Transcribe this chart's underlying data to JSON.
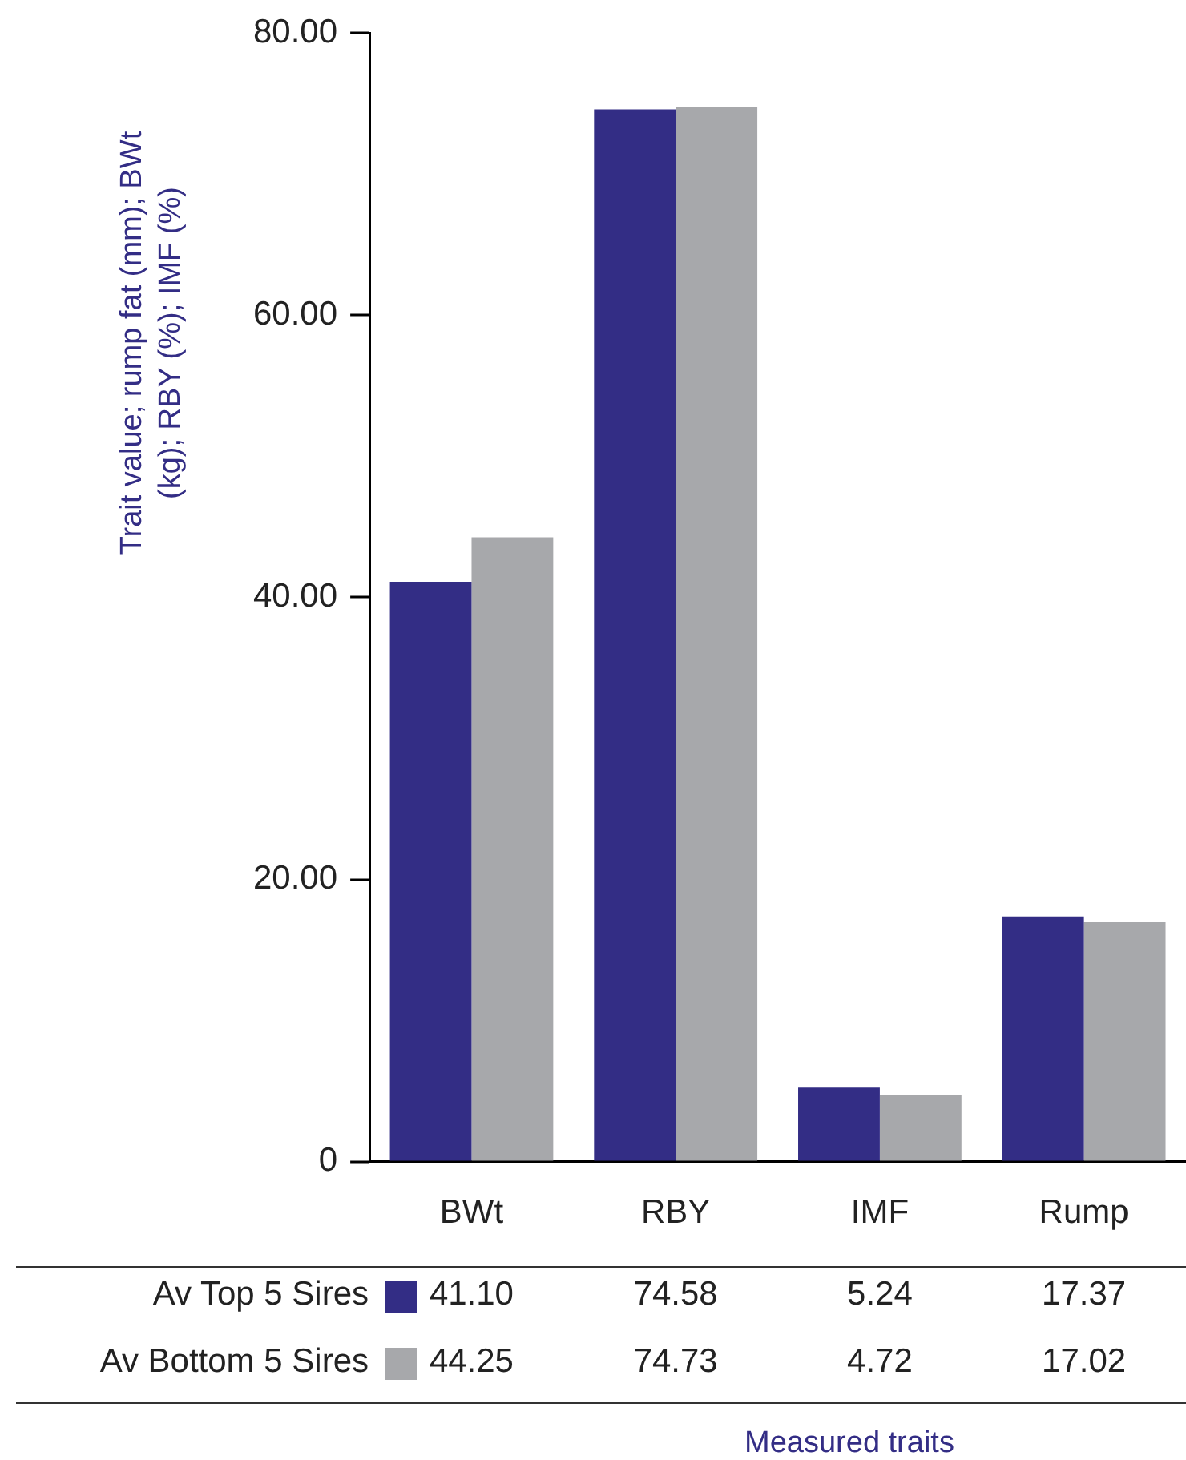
{
  "chart_data": {
    "type": "bar",
    "ylabel": "Trait value; rump fat (mm); BWt (kg); RBY (%); IMF (%)",
    "annotations": [
      "Measured traits"
    ],
    "categories": [
      "BWt",
      "RBY",
      "IMF",
      "Rump"
    ],
    "series": [
      {
        "name": "Av Top 5 Sires",
        "color": "#332d85",
        "values": [
          41.1,
          74.58,
          5.24,
          17.37
        ],
        "value_labels": [
          "41.10",
          "74.58",
          "5.24",
          "17.37"
        ]
      },
      {
        "name": "Av Bottom 5 Sires",
        "color": "#a7a8ab",
        "values": [
          44.25,
          74.73,
          4.72,
          17.02
        ],
        "value_labels": [
          "44.25",
          "74.73",
          "4.72",
          "17.02"
        ]
      }
    ],
    "ylim": [
      0,
      80
    ],
    "yticks": [
      0,
      {
        "value": 20,
        "label": "20.00"
      },
      {
        "value": 40,
        "label": "40.00"
      },
      {
        "value": 60,
        "label": "60.00"
      },
      {
        "value": 80,
        "label": "80.00"
      }
    ],
    "grid": false,
    "legend": "bottom"
  }
}
